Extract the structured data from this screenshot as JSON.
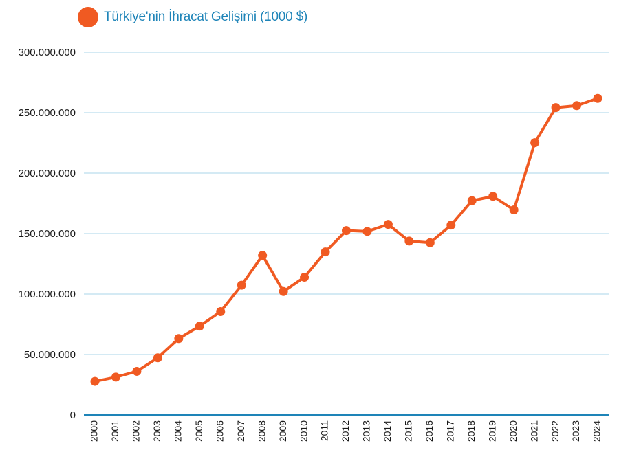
{
  "chart_data": {
    "type": "line",
    "title": "Türkiye'nin İhracat Gelişimi (1000 $)",
    "xlabel": "",
    "ylabel": "",
    "ylim": [
      0,
      300000000
    ],
    "yticks": [
      0,
      50000000,
      100000000,
      150000000,
      200000000,
      250000000,
      300000000
    ],
    "ytick_labels": [
      "0",
      "50.000.000",
      "100.000.000",
      "150.000.000",
      "200.000.000",
      "250.000.000",
      "300.000.000"
    ],
    "grid": "horizontal",
    "legend": "top-left",
    "x": [
      "2000",
      "2001",
      "2002",
      "2003",
      "2004",
      "2005",
      "2006",
      "2007",
      "2008",
      "2009",
      "2010",
      "2011",
      "2012",
      "2013",
      "2014",
      "2015",
      "2016",
      "2017",
      "2018",
      "2019",
      "2020",
      "2021",
      "2022",
      "2023",
      "2024"
    ],
    "series": [
      {
        "name": "Türkiye'nin İhracat Gelişimi (1000 $)",
        "color": "#f05a22",
        "values": [
          27800000,
          31300000,
          36100000,
          47300000,
          63200000,
          73500000,
          85500000,
          107300000,
          132000000,
          102100000,
          113900000,
          134900000,
          152500000,
          151800000,
          157600000,
          143800000,
          142500000,
          157000000,
          177200000,
          180800000,
          169600000,
          225200000,
          254200000,
          255800000,
          261800000
        ]
      }
    ]
  },
  "colors": {
    "line": "#f05a22",
    "grid": "#a9d4ea",
    "axis": "#1e84b8",
    "legend_text": "#1e84b8"
  }
}
